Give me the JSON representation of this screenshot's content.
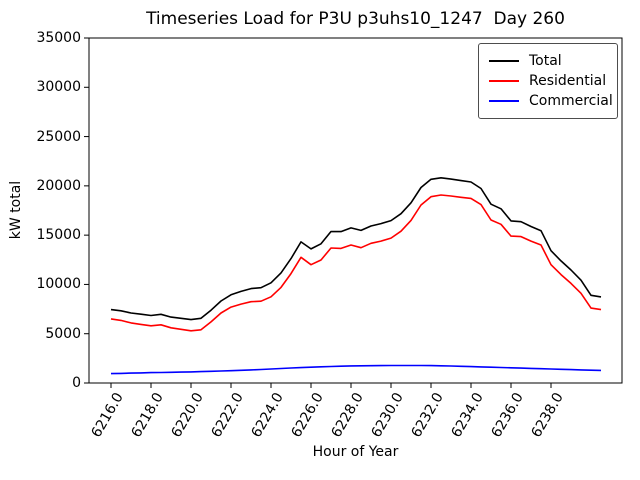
{
  "chart_data": {
    "type": "line",
    "title": "Timeseries Load for P3U p3uhs10_1247  Day 260",
    "xlabel": "Hour of Year",
    "ylabel": "kW total",
    "xlim": [
      6214.9,
      6241.55
    ],
    "ylim": [
      0,
      35000
    ],
    "grid": false,
    "legend_position": "upper right",
    "frame_color": "#000000",
    "xtick_values": [
      6216,
      6218,
      6220,
      6222,
      6224,
      6226,
      6228,
      6230,
      6232,
      6234,
      6236,
      6238
    ],
    "xtick_labels": [
      "6216.0",
      "6218.0",
      "6220.0",
      "6222.0",
      "6224.0",
      "6226.0",
      "6228.0",
      "6230.0",
      "6232.0",
      "6234.0",
      "6236.0",
      "6238.0"
    ],
    "ytick_values": [
      0,
      5000,
      10000,
      15000,
      20000,
      25000,
      30000,
      35000
    ],
    "ytick_labels": [
      "0",
      "5000",
      "10000",
      "15000",
      "20000",
      "25000",
      "30000",
      "35000"
    ],
    "x": [
      6216,
      6216.5,
      6217,
      6217.5,
      6218,
      6218.5,
      6219,
      6219.5,
      6220,
      6220.5,
      6221,
      6221.5,
      6222,
      6222.5,
      6223,
      6223.5,
      6224,
      6224.5,
      6225,
      6225.5,
      6226,
      6226.5,
      6227,
      6227.5,
      6228,
      6228.5,
      6229,
      6229.5,
      6230,
      6230.5,
      6231,
      6231.5,
      6232,
      6232.5,
      6233,
      6233.5,
      6234,
      6234.5,
      6235,
      6235.5,
      6236,
      6236.5,
      6237,
      6237.5,
      6238,
      6238.5,
      6239,
      6239.5,
      6240,
      6240.5
    ],
    "series": [
      {
        "name": "Total",
        "color": "#000000",
        "values": [
          7450,
          7325,
          7100,
          6975,
          6850,
          6970,
          6690,
          6560,
          6430,
          6560,
          7390,
          8320,
          8950,
          9290,
          9580,
          9670,
          10170,
          11170,
          12620,
          14310,
          13600,
          14120,
          15370,
          15360,
          15730,
          15480,
          15930,
          16170,
          16480,
          17180,
          18280,
          19835,
          20670,
          20820,
          20690,
          20530,
          20390,
          19730,
          18140,
          17670,
          16440,
          16360,
          15880,
          15450,
          13420,
          12390,
          11460,
          10430,
          8900,
          8730
        ]
      },
      {
        "name": "Residential",
        "color": "#ff0000",
        "values": [
          6500,
          6350,
          6100,
          5950,
          5800,
          5900,
          5600,
          5450,
          5300,
          5400,
          6200,
          7100,
          7700,
          8000,
          8250,
          8300,
          8750,
          9700,
          11100,
          12750,
          12000,
          12480,
          13700,
          13660,
          14000,
          13730,
          14170,
          14400,
          14700,
          15400,
          16500,
          18060,
          18900,
          19070,
          18970,
          18840,
          18730,
          18100,
          16540,
          16100,
          14900,
          14850,
          14400,
          14000,
          12000,
          11000,
          10100,
          9100,
          7600,
          7450
        ]
      },
      {
        "name": "Commercial",
        "color": "#0000ff",
        "values": [
          950,
          975,
          1000,
          1025,
          1050,
          1070,
          1090,
          1110,
          1130,
          1160,
          1190,
          1220,
          1250,
          1290,
          1330,
          1370,
          1420,
          1470,
          1520,
          1560,
          1600,
          1640,
          1670,
          1700,
          1730,
          1750,
          1760,
          1770,
          1780,
          1780,
          1780,
          1775,
          1770,
          1750,
          1720,
          1690,
          1660,
          1630,
          1600,
          1570,
          1540,
          1510,
          1480,
          1450,
          1420,
          1390,
          1360,
          1330,
          1300,
          1280
        ]
      }
    ]
  }
}
